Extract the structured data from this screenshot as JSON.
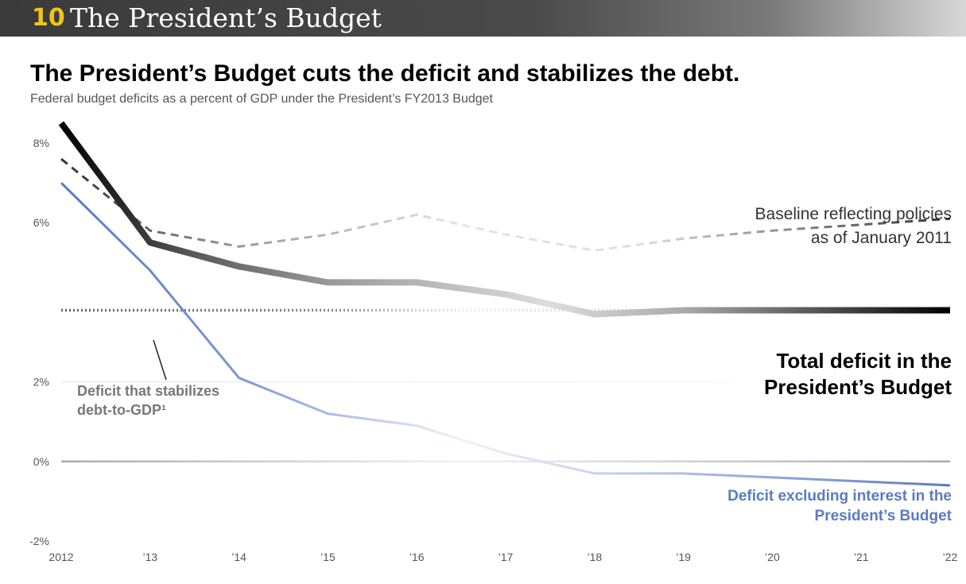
{
  "banner": {
    "number": "10",
    "title": "The President’s Budget"
  },
  "headline": "The President’s Budget cuts the deficit and stabilizes the debt.",
  "subhead": "Federal budget deficits as a percent of GDP under the President’s FY2013 Budget",
  "annotations": {
    "baseline": [
      "Baseline reflecting policies",
      "as of January 2011"
    ],
    "total": [
      "Total deficit in the",
      "President’s Budget"
    ],
    "stabilize": [
      "Deficit that stabilizes",
      "debt-to-GDP¹"
    ],
    "interest": [
      "Deficit excluding interest in the",
      "President’s Budget"
    ]
  },
  "chart_data": {
    "type": "line",
    "x": [
      "2012",
      "’13",
      "’14",
      "’15",
      "’16",
      "’17",
      "’18",
      "’19",
      "’20",
      "’21",
      "’22"
    ],
    "y_ticks": [
      "8%",
      "6%",
      "2%",
      "0%",
      "-2%"
    ],
    "y_tick_values": [
      8,
      6,
      2,
      0,
      -2
    ],
    "ylim": [
      -2,
      8.6
    ],
    "series": [
      {
        "name": "Baseline reflecting policies as of January 2011",
        "style": "dashed",
        "color": "#333333",
        "values": [
          7.6,
          5.8,
          5.4,
          5.7,
          6.2,
          5.7,
          5.3,
          5.6,
          5.8,
          5.95,
          6.1
        ]
      },
      {
        "name": "Total deficit in the President’s Budget",
        "style": "thick",
        "color": "#000000",
        "values": [
          8.5,
          5.5,
          4.9,
          4.5,
          4.5,
          4.2,
          3.7,
          3.8,
          3.8,
          3.8,
          3.8
        ]
      },
      {
        "name": "Deficit that stabilizes debt-to-GDP¹",
        "style": "dotted",
        "color": "#666666",
        "values": [
          3.8,
          3.8,
          3.8,
          3.8,
          3.8,
          3.8,
          3.8,
          3.8,
          3.8,
          3.8,
          3.8
        ]
      },
      {
        "name": "Deficit excluding interest in the President’s Budget",
        "style": "solid",
        "color": "#5a7bc4",
        "values": [
          7.0,
          4.8,
          2.1,
          1.2,
          0.9,
          0.2,
          -0.3,
          -0.3,
          -0.4,
          -0.5,
          -0.6
        ]
      }
    ]
  }
}
